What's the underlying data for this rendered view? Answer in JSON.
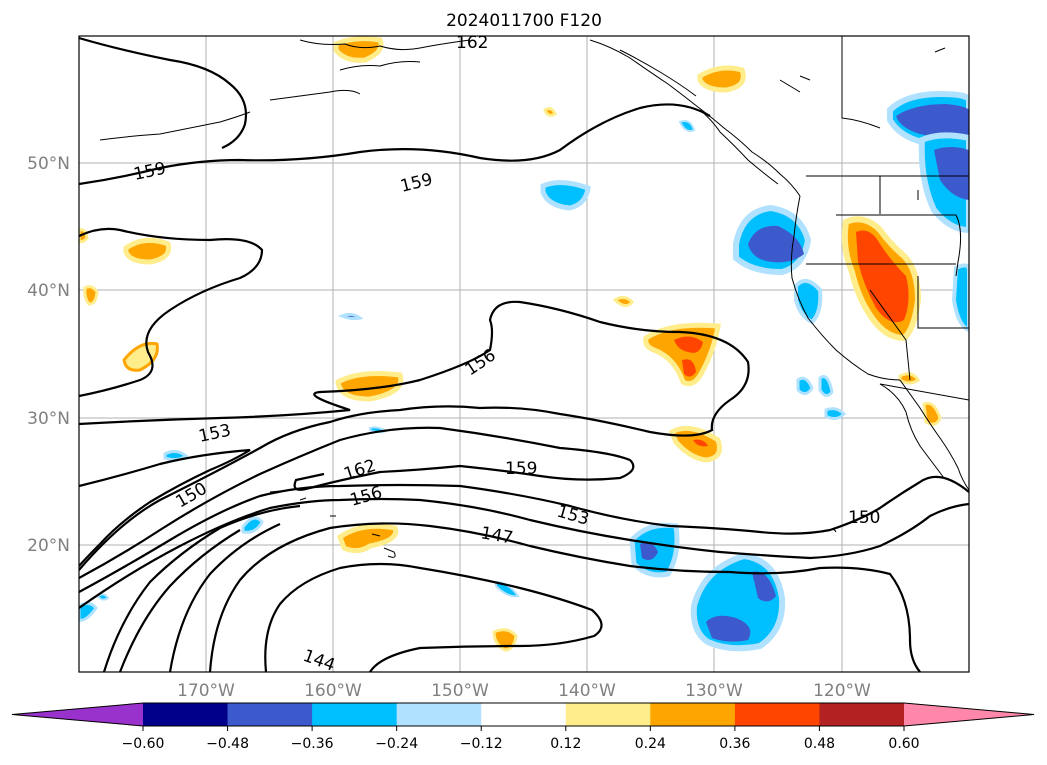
{
  "title": "2024011700 F120",
  "longitude_labels": [
    "170°W",
    "160°W",
    "150°W",
    "140°W",
    "130°W",
    "120°W"
  ],
  "latitude_labels": [
    "50°N",
    "40°N",
    "30°N",
    "20°N"
  ],
  "contour_labels": [
    "162",
    "159",
    "159",
    "156",
    "153",
    "150",
    "162",
    "156",
    "159",
    "153",
    "147",
    "150",
    "144"
  ],
  "colorbar": {
    "ticks": [
      "−0.60",
      "−0.48",
      "−0.36",
      "−0.24",
      "−0.12",
      "0.12",
      "0.24",
      "0.36",
      "0.48",
      "0.60"
    ],
    "colors": [
      "#9932cc",
      "#00008b",
      "#3d5acd",
      "#00bfff",
      "#b0e2ff",
      "#ffffff",
      "#ffec8b",
      "#ffa500",
      "#ff4500",
      "#b22222",
      "#ff88aa"
    ]
  },
  "colors": {
    "contour": "#000000",
    "gridlines": "#b0b0b0",
    "axis_label": "#808080"
  }
}
